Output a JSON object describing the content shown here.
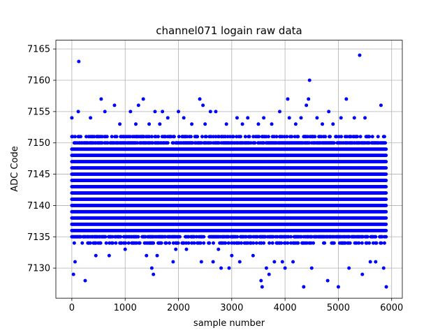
{
  "chart_data": {
    "type": "scatter",
    "title": "channel071 logain raw data",
    "xlabel": "sample number",
    "ylabel": "ADC Code",
    "xlim": [
      -300,
      6200
    ],
    "ylim": [
      7125.2,
      7166.4
    ],
    "xticks": [
      0,
      1000,
      2000,
      3000,
      4000,
      5000,
      6000
    ],
    "yticks": [
      7130,
      7135,
      7140,
      7145,
      7150,
      7155,
      7160,
      7165
    ],
    "grid": true,
    "color": "#0000ff",
    "dense_band": {
      "x_range": [
        0,
        5900
      ],
      "y_range": [
        7134,
        7151
      ]
    },
    "series": [
      {
        "x": [
          0,
          30,
          60,
          120,
          130,
          250,
          350,
          450,
          550,
          620,
          700,
          800,
          900,
          1000,
          1100,
          1200,
          1250,
          1340,
          1400,
          1450,
          1500,
          1530,
          1560,
          1600,
          1650,
          1700,
          1800,
          1900,
          1950,
          2000,
          2100,
          2150,
          2250,
          2400,
          2430,
          2460,
          2500,
          2600,
          2650,
          2700,
          2750,
          2800,
          2900,
          2950,
          3000,
          3100,
          3150,
          3200,
          3300,
          3400,
          3500,
          3550,
          3570,
          3600,
          3650,
          3700,
          3750,
          3800,
          3900,
          3950,
          4000,
          4050,
          4080,
          4150,
          4200,
          4300,
          4350,
          4400,
          4440,
          4460,
          4500,
          4600,
          4700,
          4800,
          4820,
          4900,
          5000,
          5050,
          5150,
          5200,
          5300,
          5400,
          5450,
          5500,
          5600,
          5700,
          5800,
          5850,
          5900
        ],
        "y": [
          7154,
          7129,
          7131,
          7155,
          7163,
          7128,
          7154,
          7132,
          7157,
          7155,
          7132,
          7156,
          7153,
          7133,
          7155,
          7153,
          7156,
          7157,
          7132,
          7153,
          7130,
          7129,
          7155,
          7132,
          7153,
          7155,
          7154,
          7131,
          7133,
          7155,
          7154,
          7133,
          7153,
          7157,
          7131,
          7156,
          7153,
          7155,
          7131,
          7155,
          7133,
          7130,
          7153,
          7130,
          7132,
          7154,
          7131,
          7153,
          7154,
          7132,
          7153,
          7128,
          7127,
          7154,
          7130,
          7129,
          7153,
          7131,
          7155,
          7131,
          7130,
          7157,
          7154,
          7131,
          7153,
          7154,
          7127,
          7156,
          7157,
          7160,
          7130,
          7154,
          7153,
          7128,
          7155,
          7153,
          7127,
          7154,
          7157,
          7130,
          7154,
          7164,
          7129,
          7154,
          7131,
          7131,
          7156,
          7130,
          7127
        ]
      }
    ]
  }
}
